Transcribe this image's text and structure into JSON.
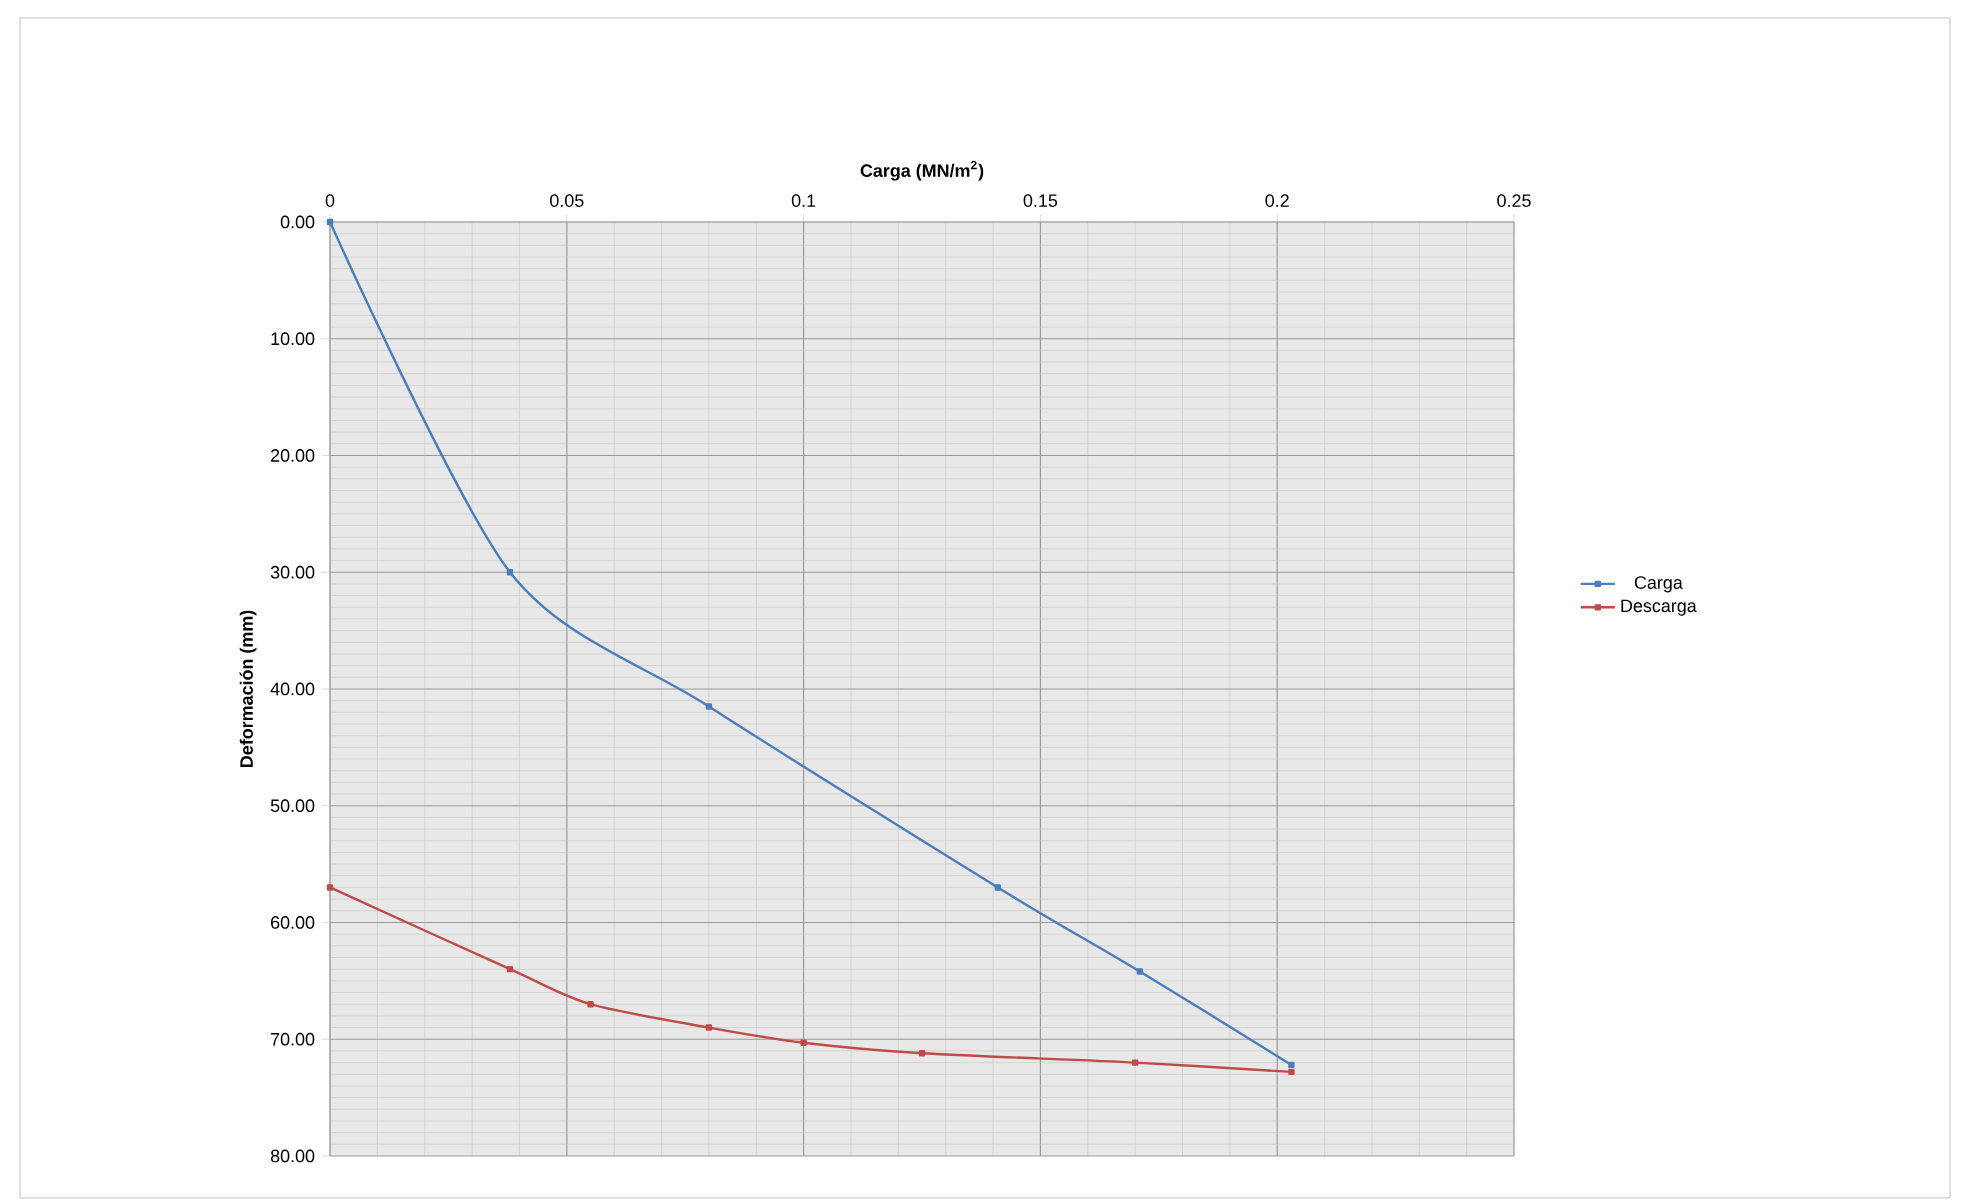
{
  "chart_data": {
    "type": "line",
    "xlabel": "Carga (MN/m$^{2}$)",
    "ylabel": "Deformación (mm)",
    "xlim": [
      0,
      0.25
    ],
    "xticks": [
      0,
      0.05,
      0.1,
      0.15,
      0.2,
      0.25
    ],
    "ylim": [
      80,
      0
    ],
    "yticks": [
      {
        "value": 0,
        "label": "0.00"
      },
      {
        "value": 10,
        "label": "10.00"
      },
      {
        "value": 20,
        "label": "20.00"
      },
      {
        "value": 30,
        "label": "30.00"
      },
      {
        "value": 40,
        "label": "40.00"
      },
      {
        "value": 50,
        "label": "50.00"
      },
      {
        "value": 60,
        "label": "60.00"
      },
      {
        "value": 70,
        "label": "70.00"
      },
      {
        "value": 80,
        "label": "80.00"
      }
    ],
    "grid": true,
    "legend": "right",
    "marker": "square",
    "series": [
      {
        "name": "Carga",
        "color": "#4a7ebb",
        "x": [
          0,
          0.038,
          0.08,
          0.141,
          0.171,
          0.203
        ],
        "values": [
          0,
          30,
          41.5,
          57,
          64.2,
          72.2
        ]
      },
      {
        "name": "Descarga",
        "color": "#be4b48",
        "x": [
          0,
          0.038,
          0.055,
          0.08,
          0.1,
          0.125,
          0.17,
          0.203
        ],
        "values": [
          57,
          64,
          67,
          69,
          70.3,
          71.2,
          72,
          72.8
        ]
      }
    ]
  }
}
